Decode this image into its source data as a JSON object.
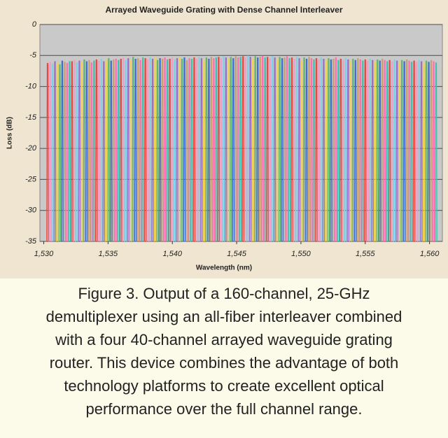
{
  "chart_data": {
    "type": "spectrum",
    "title": "Arrayed Waveguide Grating with Dense Channel Interleaver",
    "x_label": "Wavelength (nm)",
    "y_label": "Loss (dB)",
    "xlim": [
      1529.7,
      1561.0
    ],
    "ylim": [
      -35,
      0
    ],
    "xticks": [
      {
        "value": 1530,
        "label": "1,530"
      },
      {
        "value": 1535,
        "label": "1,535"
      },
      {
        "value": 1540,
        "label": "1,540"
      },
      {
        "value": 1545,
        "label": "1,545"
      },
      {
        "value": 1550,
        "label": "1,550"
      },
      {
        "value": 1555,
        "label": "1,555"
      },
      {
        "value": 1560,
        "label": "1,560"
      }
    ],
    "yticks": [
      0,
      -5,
      -10,
      -15,
      -20,
      -25,
      -30,
      -35
    ],
    "grid": true,
    "colors": [
      "#e8483f",
      "#f29cc4",
      "#7fd0e8",
      "#9a6fc8",
      "#f2d24a",
      "#62b86a",
      "#3d6fd0",
      "#c8a070",
      "#ff6fb0",
      "#40c0b0"
    ],
    "x": [
      1530.3,
      1530.49,
      1530.68,
      1530.87,
      1531.06,
      1531.25,
      1531.44,
      1531.63,
      1531.82,
      1532.01,
      1532.2,
      1532.39,
      1532.58,
      1532.77,
      1532.96,
      1533.15,
      1533.34,
      1533.53,
      1533.72,
      1533.91,
      1534.1,
      1534.29,
      1534.48,
      1534.67,
      1534.86,
      1535.05,
      1535.24,
      1535.43,
      1535.62,
      1535.81,
      1536.0,
      1536.19,
      1536.38,
      1536.57,
      1536.76,
      1536.95,
      1537.14,
      1537.33,
      1537.52,
      1537.71,
      1537.9,
      1538.09,
      1538.28,
      1538.47,
      1538.66,
      1538.85,
      1539.04,
      1539.23,
      1539.42,
      1539.61,
      1539.8,
      1539.99,
      1540.18,
      1540.37,
      1540.56,
      1540.75,
      1540.94,
      1541.13,
      1541.32,
      1541.51,
      1541.7,
      1541.89,
      1542.08,
      1542.27,
      1542.46,
      1542.65,
      1542.84,
      1543.03,
      1543.22,
      1543.41,
      1543.6,
      1543.79,
      1543.98,
      1544.17,
      1544.36,
      1544.55,
      1544.74,
      1544.93,
      1545.12,
      1545.31,
      1545.5,
      1545.69,
      1545.88,
      1546.07,
      1546.26,
      1546.45,
      1546.64,
      1546.83,
      1547.02,
      1547.21,
      1547.4,
      1547.59,
      1547.78,
      1547.97,
      1548.16,
      1548.35,
      1548.54,
      1548.73,
      1548.92,
      1549.11,
      1549.3,
      1549.49,
      1549.68,
      1549.87,
      1550.06,
      1550.25,
      1550.44,
      1550.63,
      1550.82,
      1551.01,
      1551.2,
      1551.39,
      1551.58,
      1551.77,
      1551.96,
      1552.15,
      1552.34,
      1552.53,
      1552.72,
      1552.91,
      1553.1,
      1553.29,
      1553.48,
      1553.67,
      1553.86,
      1554.05,
      1554.24,
      1554.43,
      1554.62,
      1554.81,
      1555.0,
      1555.19,
      1555.38,
      1555.57,
      1555.76,
      1555.95,
      1556.14,
      1556.33,
      1556.52,
      1556.71,
      1556.9,
      1557.09,
      1557.28,
      1557.47,
      1557.66,
      1557.85,
      1558.04,
      1558.23,
      1558.42,
      1558.61,
      1558.8,
      1558.99,
      1559.18,
      1559.37,
      1559.56,
      1559.75,
      1559.94,
      1560.13,
      1560.32,
      1560.51
    ],
    "values": [
      -6.3,
      -6.1,
      -6.4,
      -6.0,
      -6.2,
      -6.5,
      -5.9,
      -6.1,
      -6.3,
      -6.0,
      -6.0,
      -5.8,
      -6.2,
      -5.9,
      -6.1,
      -5.7,
      -6.0,
      -5.8,
      -6.2,
      -5.9,
      -5.7,
      -5.9,
      -5.6,
      -6.0,
      -5.8,
      -5.5,
      -5.9,
      -5.7,
      -5.6,
      -5.8,
      -5.6,
      -5.4,
      -5.8,
      -5.5,
      -5.7,
      -5.3,
      -5.6,
      -5.5,
      -5.8,
      -5.4,
      -5.5,
      -5.7,
      -5.4,
      -5.6,
      -5.3,
      -5.8,
      -5.5,
      -5.6,
      -5.4,
      -5.7,
      -5.6,
      -5.4,
      -5.7,
      -5.5,
      -5.3,
      -5.6,
      -5.4,
      -5.8,
      -5.5,
      -5.6,
      -5.4,
      -5.6,
      -5.3,
      -5.5,
      -5.7,
      -5.4,
      -5.6,
      -5.3,
      -5.5,
      -5.4,
      -5.3,
      -5.5,
      -5.2,
      -5.4,
      -5.6,
      -5.3,
      -5.5,
      -5.2,
      -5.4,
      -5.3,
      -5.2,
      -5.4,
      -5.1,
      -5.3,
      -5.5,
      -5.2,
      -5.4,
      -5.3,
      -5.1,
      -5.4,
      -5.3,
      -5.5,
      -5.2,
      -5.4,
      -5.6,
      -5.3,
      -5.5,
      -5.4,
      -5.2,
      -5.5,
      -5.4,
      -5.6,
      -5.3,
      -5.5,
      -5.7,
      -5.4,
      -5.6,
      -5.3,
      -5.5,
      -5.7,
      -5.5,
      -5.7,
      -5.4,
      -5.6,
      -5.8,
      -5.5,
      -5.7,
      -5.6,
      -5.4,
      -5.8,
      -5.6,
      -5.8,
      -5.5,
      -5.7,
      -5.9,
      -5.6,
      -5.8,
      -5.5,
      -5.7,
      -5.9,
      -5.7,
      -5.9,
      -5.6,
      -5.8,
      -6.0,
      -5.7,
      -5.9,
      -5.6,
      -5.8,
      -6.0,
      -5.8,
      -6.0,
      -5.7,
      -5.9,
      -6.1,
      -5.8,
      -6.0,
      -5.7,
      -5.9,
      -6.1,
      -5.9,
      -6.1,
      -5.8,
      -6.0,
      -6.2,
      -5.9,
      -6.1,
      -5.8,
      -6.0,
      -6.2
    ]
  },
  "caption_lines": [
    "Figure 3. Output of a 160-channel, 25-GHz",
    "demultiplexer using an all-fiber interleaver combined",
    "with a four 40-channel arrayed waveguide grating",
    "router. This device combines the advantage of both",
    "technology platforms to create excellent optical",
    "performance over the full channel range."
  ]
}
